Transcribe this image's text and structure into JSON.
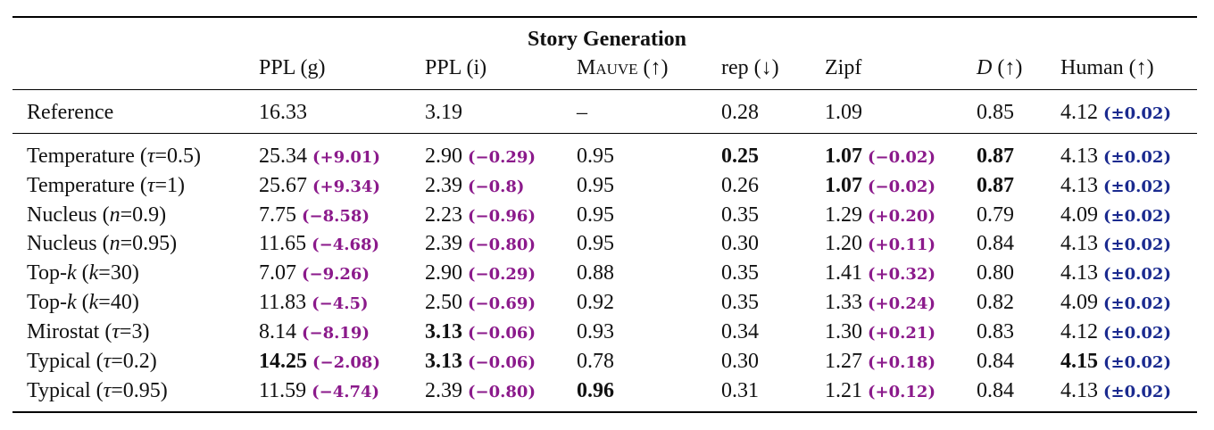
{
  "table": {
    "title": "Story Generation",
    "headers": [
      "PPL (g)",
      "PPL (i)",
      "Mauve (↑)",
      "rep (↓)",
      "Zipf",
      "D (↑)",
      "Human (↑)"
    ],
    "reference": {
      "label": "Reference",
      "cells": [
        {
          "v": "16.33"
        },
        {
          "v": "3.19"
        },
        {
          "v": "–"
        },
        {
          "v": "0.28"
        },
        {
          "v": "1.09"
        },
        {
          "v": "0.85"
        },
        {
          "v": "4.12",
          "d": "(±0.02)"
        }
      ]
    },
    "rows": [
      {
        "label": "Temperature (τ=0.5)",
        "cells": [
          {
            "v": "25.34",
            "d": "(+9.01)"
          },
          {
            "v": "2.90",
            "d": "(−0.29)"
          },
          {
            "v": "0.95"
          },
          {
            "v": "0.25",
            "b": true
          },
          {
            "v": "1.07",
            "d": "(−0.02)",
            "b": true
          },
          {
            "v": "0.87",
            "b": true
          },
          {
            "v": "4.13",
            "d": "(±0.02)"
          }
        ]
      },
      {
        "label": "Temperature (τ=1)",
        "cells": [
          {
            "v": "25.67",
            "d": "(+9.34)"
          },
          {
            "v": "2.39",
            "d": "(−0.8)"
          },
          {
            "v": "0.95"
          },
          {
            "v": "0.26"
          },
          {
            "v": "1.07",
            "d": "(−0.02)",
            "b": true
          },
          {
            "v": "0.87",
            "b": true
          },
          {
            "v": "4.13",
            "d": "(±0.02)"
          }
        ]
      },
      {
        "label": "Nucleus (n=0.9)",
        "cells": [
          {
            "v": "7.75",
            "d": "(−8.58)"
          },
          {
            "v": "2.23",
            "d": "(−0.96)"
          },
          {
            "v": "0.95"
          },
          {
            "v": "0.35"
          },
          {
            "v": "1.29",
            "d": "(+0.20)"
          },
          {
            "v": "0.79"
          },
          {
            "v": "4.09",
            "d": "(±0.02)"
          }
        ]
      },
      {
        "label": "Nucleus (n=0.95)",
        "cells": [
          {
            "v": "11.65",
            "d": "(−4.68)"
          },
          {
            "v": "2.39",
            "d": "(−0.80)"
          },
          {
            "v": "0.95"
          },
          {
            "v": "0.30"
          },
          {
            "v": "1.20",
            "d": "(+0.11)"
          },
          {
            "v": "0.84"
          },
          {
            "v": "4.13",
            "d": "(±0.02)"
          }
        ]
      },
      {
        "label": "Top-k (k=30)",
        "cells": [
          {
            "v": "7.07",
            "d": "(−9.26)"
          },
          {
            "v": "2.90",
            "d": "(−0.29)"
          },
          {
            "v": "0.88"
          },
          {
            "v": "0.35"
          },
          {
            "v": "1.41",
            "d": "(+0.32)"
          },
          {
            "v": "0.80"
          },
          {
            "v": "4.13",
            "d": "(±0.02)"
          }
        ]
      },
      {
        "label": "Top-k (k=40)",
        "cells": [
          {
            "v": "11.83",
            "d": "(−4.5)"
          },
          {
            "v": "2.50",
            "d": "(−0.69)"
          },
          {
            "v": "0.92"
          },
          {
            "v": "0.35"
          },
          {
            "v": "1.33",
            "d": "(+0.24)"
          },
          {
            "v": "0.82"
          },
          {
            "v": "4.09",
            "d": "(±0.02)"
          }
        ]
      },
      {
        "label": "Mirostat (τ=3)",
        "cells": [
          {
            "v": "8.14",
            "d": "(−8.19)"
          },
          {
            "v": "3.13",
            "d": "(−0.06)",
            "b": true
          },
          {
            "v": "0.93"
          },
          {
            "v": "0.34"
          },
          {
            "v": "1.30",
            "d": "(+0.21)"
          },
          {
            "v": "0.83"
          },
          {
            "v": "4.12",
            "d": "(±0.02)"
          }
        ]
      },
      {
        "label": "Typical (τ=0.2)",
        "cells": [
          {
            "v": "14.25",
            "d": "(−2.08)",
            "b": true
          },
          {
            "v": "3.13",
            "d": "(−0.06)",
            "b": true
          },
          {
            "v": "0.78"
          },
          {
            "v": "0.30"
          },
          {
            "v": "1.27",
            "d": "(+0.18)"
          },
          {
            "v": "0.84"
          },
          {
            "v": "4.15",
            "d": "(±0.02)",
            "b": true
          }
        ]
      },
      {
        "label": "Typical (τ=0.95)",
        "cells": [
          {
            "v": "11.59",
            "d": "(−4.74)"
          },
          {
            "v": "2.39",
            "d": "(−0.80)"
          },
          {
            "v": "0.96",
            "b": true
          },
          {
            "v": "0.31"
          },
          {
            "v": "1.21",
            "d": "(+0.12)"
          },
          {
            "v": "0.84"
          },
          {
            "v": "4.13",
            "d": "(±0.02)"
          }
        ]
      }
    ],
    "colors": {
      "delta": "#8b1a8b",
      "human_ci": "#1a2a8f",
      "text": "#111111"
    }
  }
}
